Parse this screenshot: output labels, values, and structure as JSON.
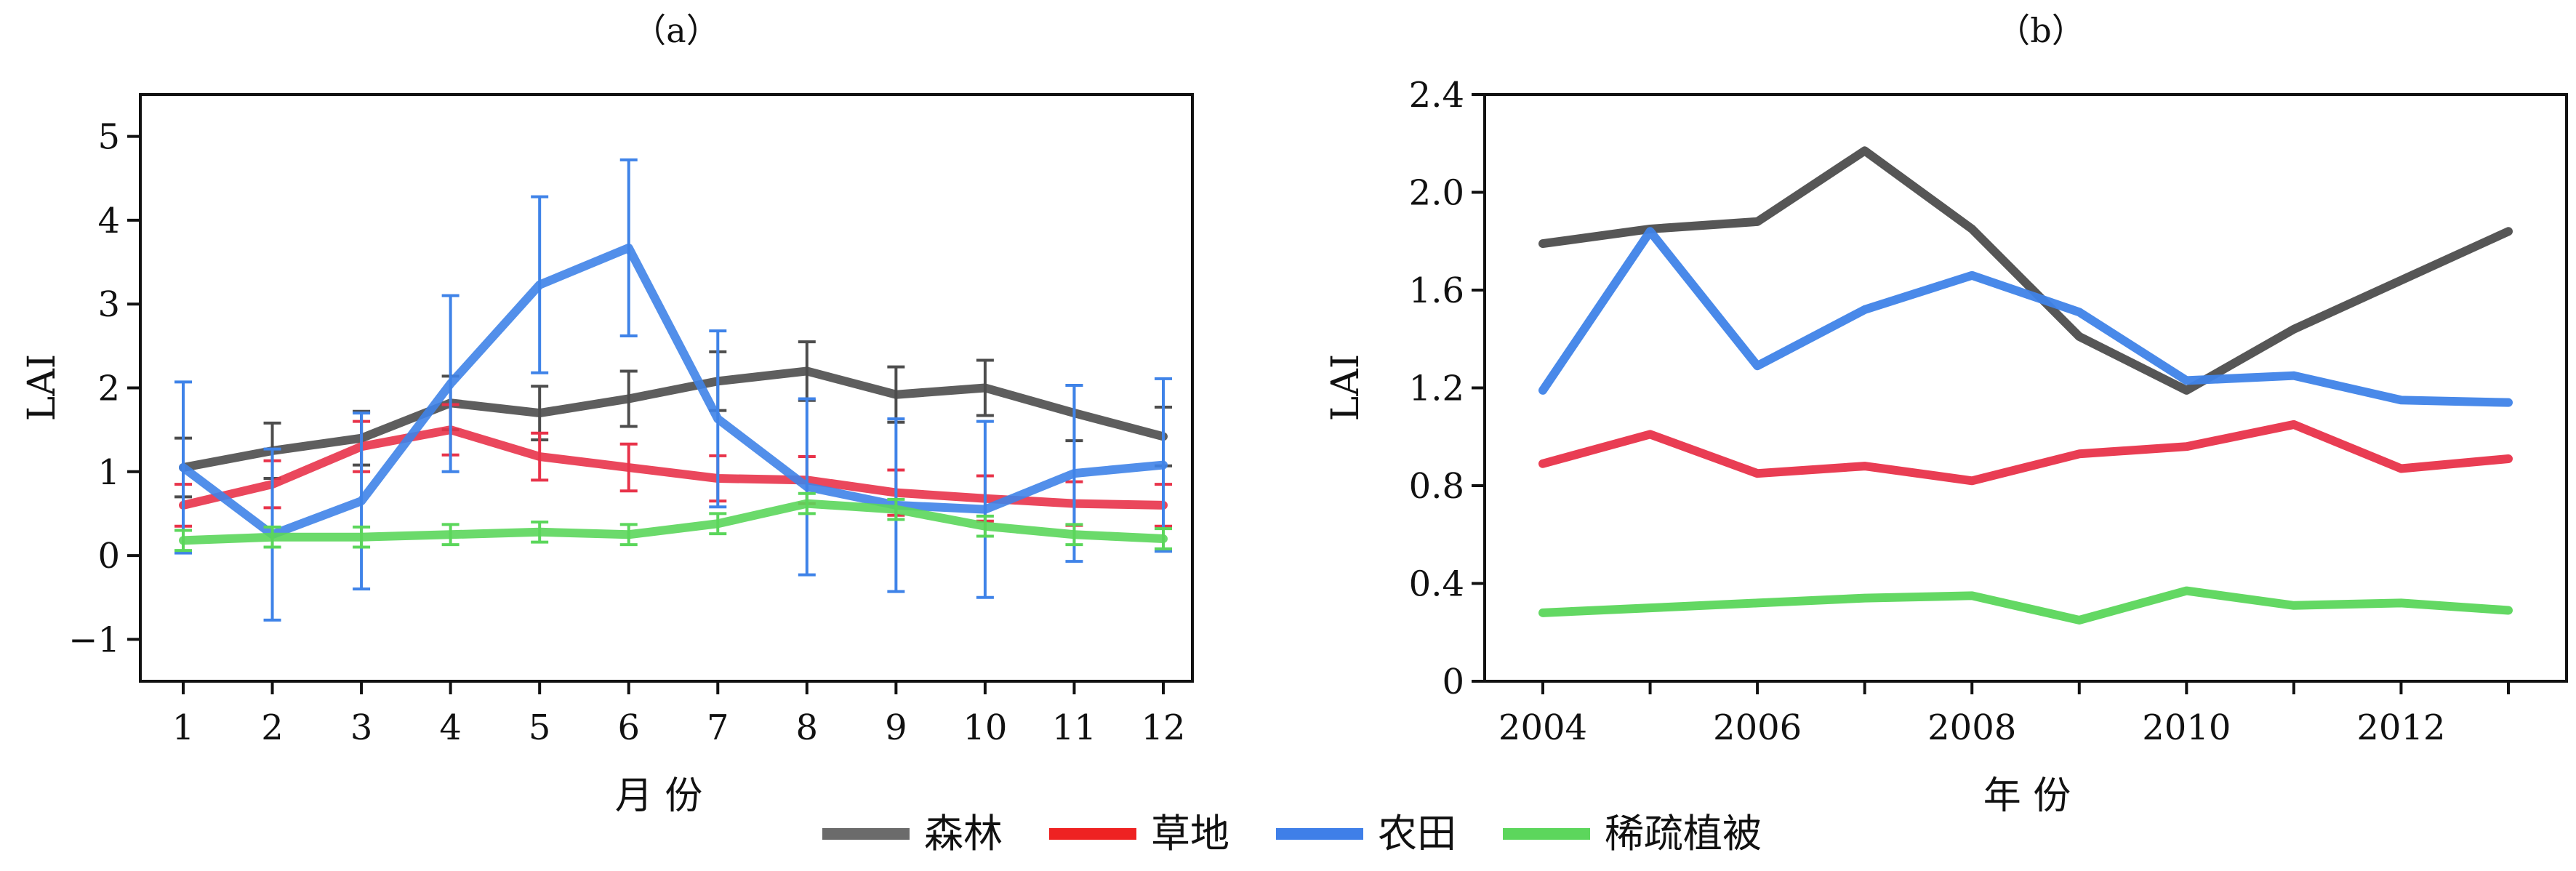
{
  "chart_data": [
    {
      "type": "line",
      "title": "（a）",
      "xlabel": "月 份",
      "ylabel": "LAI",
      "categories": [
        "1",
        "2",
        "3",
        "4",
        "5",
        "6",
        "7",
        "8",
        "9",
        "10",
        "11",
        "12"
      ],
      "yticks": [
        "−1",
        "0",
        "1",
        "2",
        "3",
        "4",
        "5"
      ],
      "ylim": [
        -1.5,
        5.5
      ],
      "error_bars": true,
      "series": [
        {
          "name": "森林",
          "color": "#4d4d4d",
          "values": [
            1.05,
            1.25,
            1.4,
            1.82,
            1.7,
            1.87,
            2.08,
            2.2,
            1.92,
            2.0,
            1.7,
            1.42
          ],
          "error": [
            0.35,
            0.33,
            0.32,
            0.32,
            0.32,
            0.33,
            0.35,
            0.35,
            0.33,
            0.33,
            0.33,
            0.35
          ]
        },
        {
          "name": "草地",
          "color": "#e8334a",
          "values": [
            0.6,
            0.85,
            1.3,
            1.5,
            1.18,
            1.05,
            0.92,
            0.9,
            0.75,
            0.68,
            0.62,
            0.6
          ],
          "error": [
            0.25,
            0.28,
            0.3,
            0.3,
            0.28,
            0.28,
            0.27,
            0.28,
            0.27,
            0.27,
            0.26,
            0.25
          ]
        },
        {
          "name": "农田",
          "color": "#3f83e8",
          "values": [
            1.05,
            0.25,
            0.65,
            2.05,
            3.23,
            3.67,
            1.63,
            0.82,
            0.6,
            0.55,
            0.98,
            1.08
          ],
          "error": [
            1.02,
            1.02,
            1.05,
            1.05,
            1.05,
            1.05,
            1.05,
            1.05,
            1.03,
            1.05,
            1.05,
            1.03
          ]
        },
        {
          "name": "稀疏植被",
          "color": "#5bd65b",
          "values": [
            0.18,
            0.22,
            0.22,
            0.25,
            0.28,
            0.25,
            0.38,
            0.62,
            0.55,
            0.35,
            0.25,
            0.2
          ],
          "error": [
            0.12,
            0.12,
            0.12,
            0.12,
            0.12,
            0.12,
            0.12,
            0.12,
            0.12,
            0.12,
            0.12,
            0.12
          ]
        }
      ]
    },
    {
      "type": "line",
      "title": "（b）",
      "xlabel": "年 份",
      "ylabel": "LAI",
      "x": [
        2004,
        2005,
        2006,
        2007,
        2008,
        2009,
        2010,
        2011,
        2012,
        2013
      ],
      "xticks": [
        "2004",
        "2006",
        "2008",
        "2010",
        "2012"
      ],
      "yticks": [
        "0",
        "0.4",
        "0.8",
        "1.2",
        "1.6",
        "2.0",
        "2.4"
      ],
      "ylim": [
        0,
        2.4
      ],
      "series": [
        {
          "name": "森林",
          "color": "#4d4d4d",
          "values": [
            1.79,
            1.85,
            1.88,
            2.17,
            1.85,
            1.41,
            1.19,
            1.44,
            1.64,
            1.84
          ]
        },
        {
          "name": "草地",
          "color": "#e8334a",
          "values": [
            0.89,
            1.01,
            0.85,
            0.88,
            0.82,
            0.93,
            0.96,
            1.05,
            0.87,
            0.91
          ]
        },
        {
          "name": "农田",
          "color": "#3f83e8",
          "values": [
            1.19,
            1.84,
            1.29,
            1.52,
            1.66,
            1.51,
            1.23,
            1.25,
            1.15,
            1.14
          ]
        },
        {
          "name": "稀疏植被",
          "color": "#5bd65b",
          "values": [
            0.28,
            0.3,
            0.32,
            0.34,
            0.35,
            0.25,
            0.37,
            0.31,
            0.32,
            0.29
          ]
        }
      ]
    }
  ],
  "legend": {
    "placement": "bottom-center",
    "items": [
      {
        "label": "森林",
        "color": "#6b6b6b"
      },
      {
        "label": "草地",
        "color": "#ee2222"
      },
      {
        "label": "农田",
        "color": "#3f7fe8"
      },
      {
        "label": "稀疏植被",
        "color": "#5cd65c"
      }
    ]
  }
}
